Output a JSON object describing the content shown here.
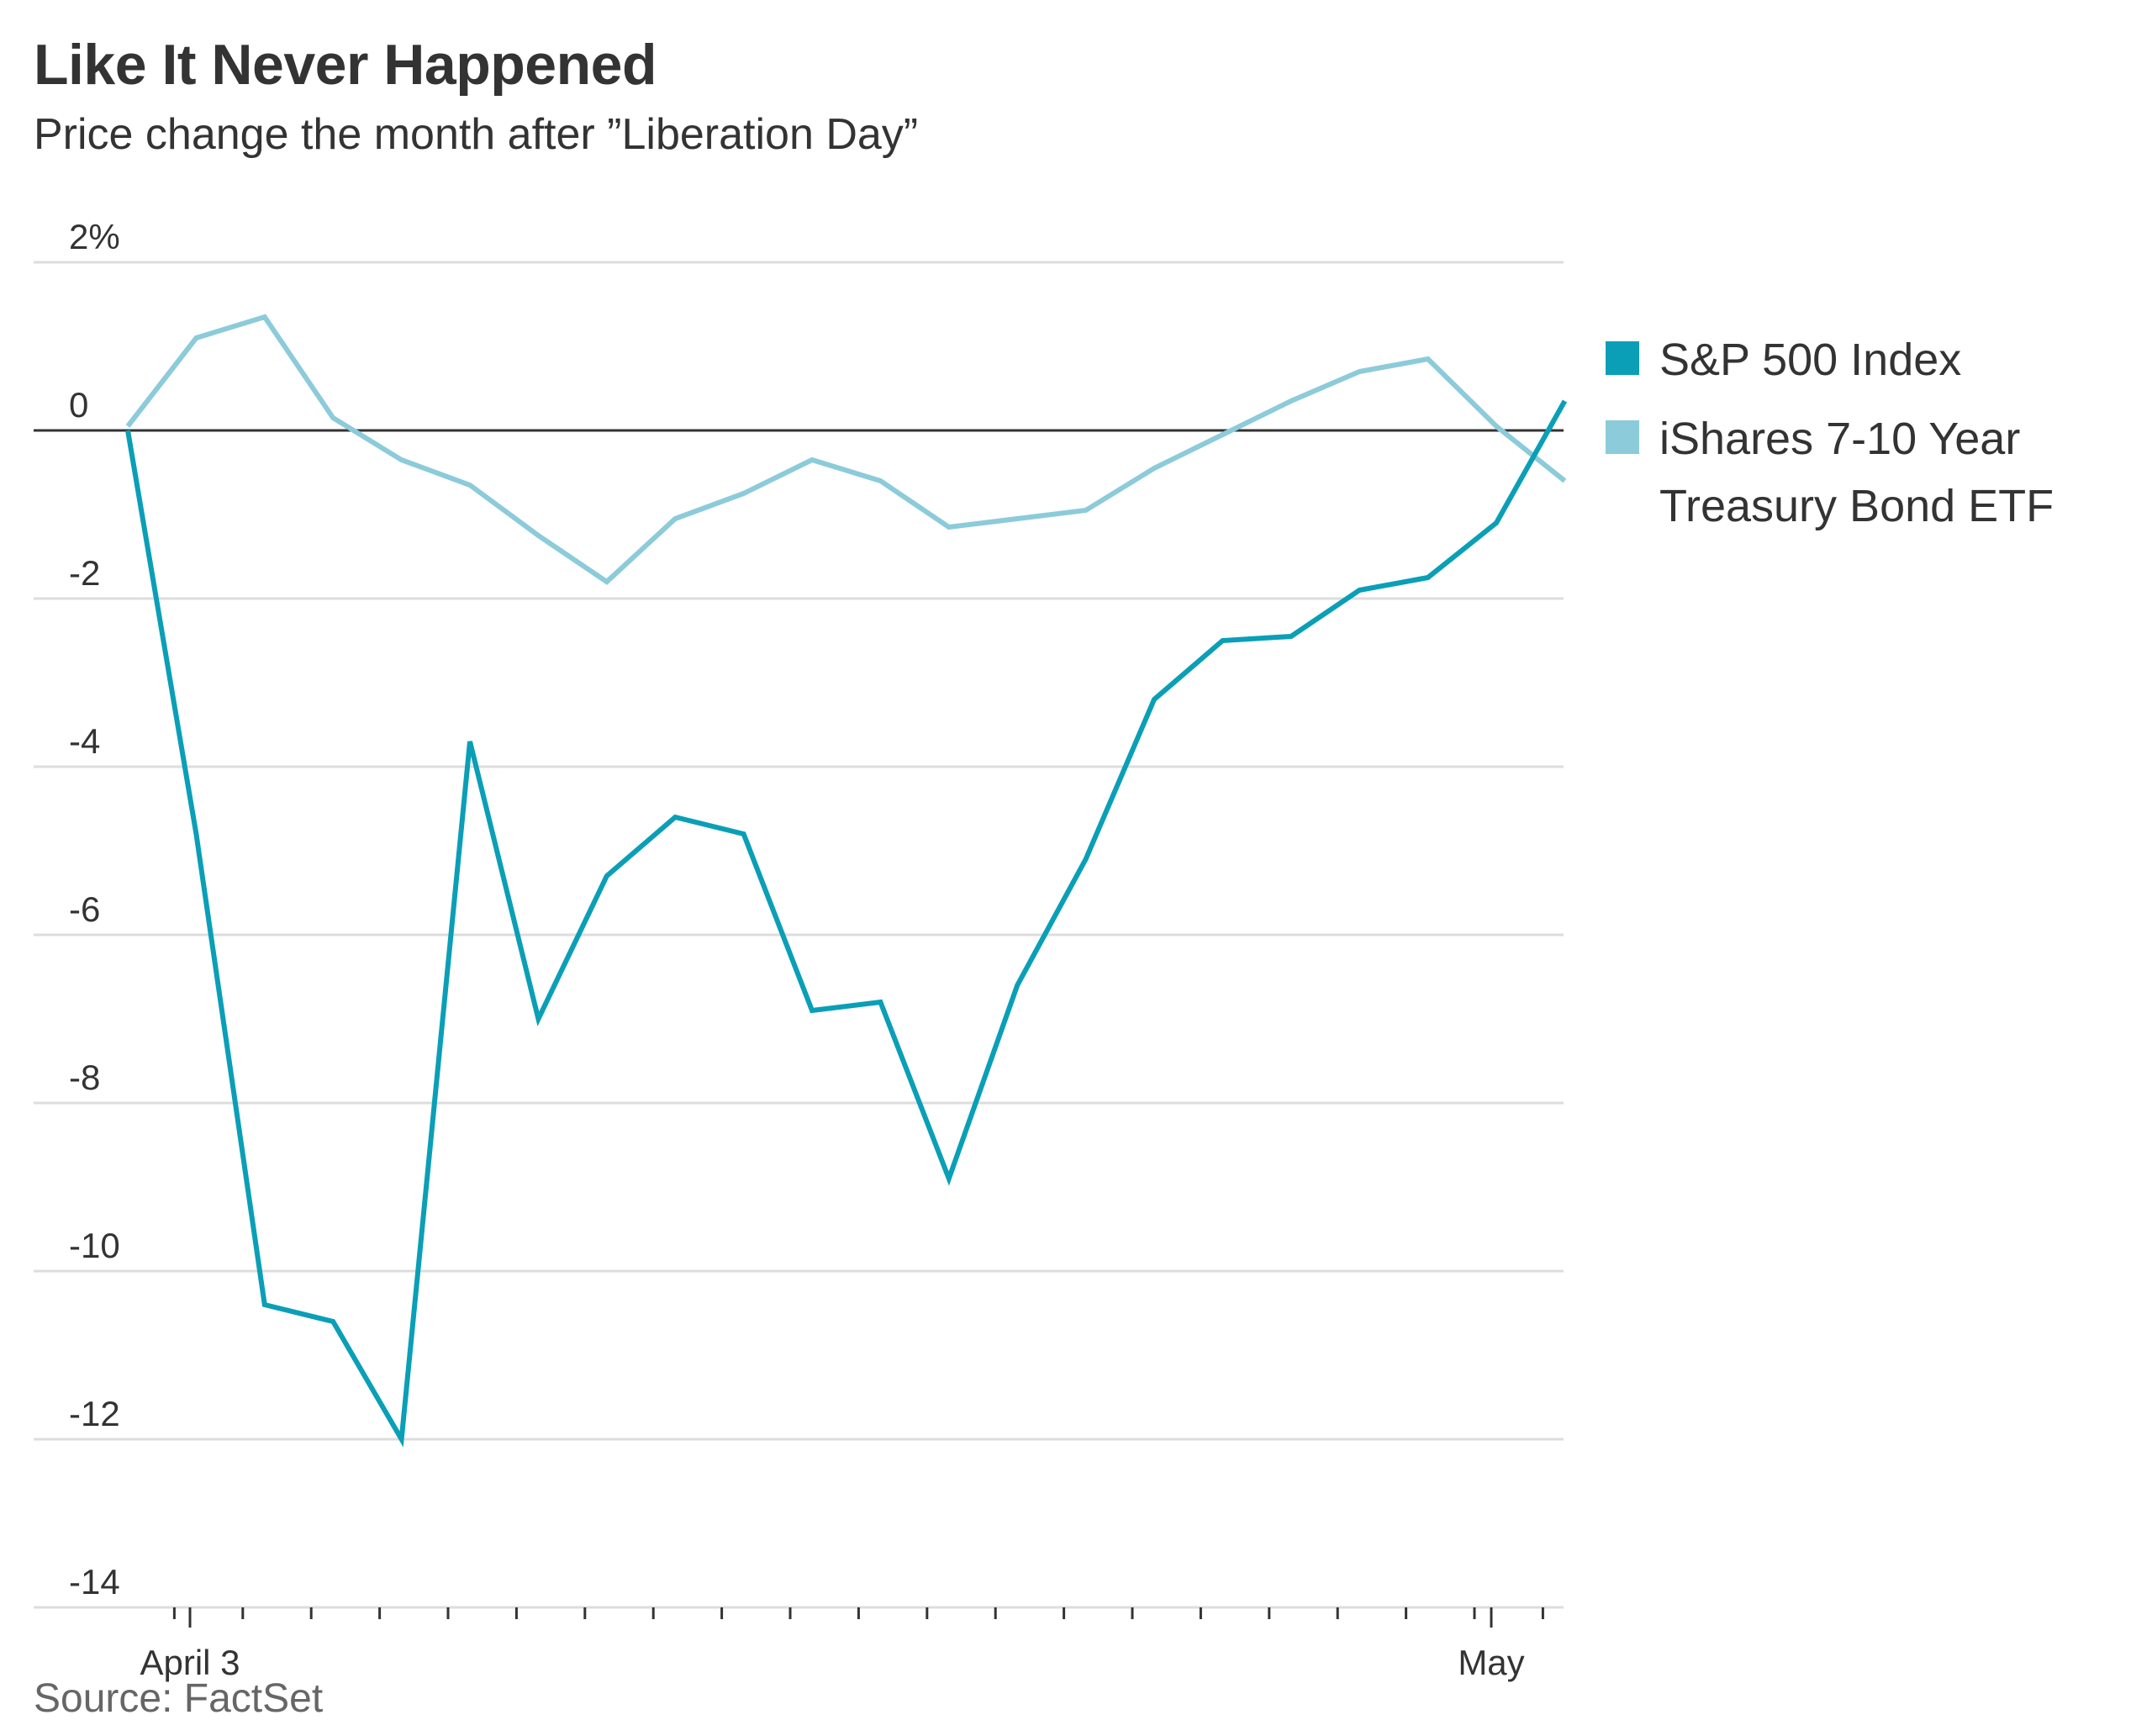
{
  "header": {
    "title": "Like It Never Happened",
    "subtitle": "Price change the month after ”Liberation Day”",
    "source": "Source: FactSet"
  },
  "colors": {
    "sp500": "#0a9fb7",
    "treasury": "#8ccbd9",
    "zero_line": "#333333",
    "grid": "#dddddd",
    "text": "#333333"
  },
  "legend": {
    "items": [
      {
        "label": "S&P 500 Index",
        "color": "#0a9fb7"
      },
      {
        "label": "iShares 7-10 Year Treasury Bond ETF",
        "color": "#8ccbd9"
      }
    ]
  },
  "chart_data": {
    "type": "line",
    "title": "Like It Never Happened",
    "subtitle": "Price change the month after ”Liberation Day”",
    "xlabel": "",
    "ylabel": "",
    "ylim": [
      -14,
      2
    ],
    "yticks": [
      2,
      0,
      -2,
      -4,
      -6,
      -8,
      -10,
      -12,
      -14
    ],
    "ytick_labels": [
      "2%",
      "0",
      "-2",
      "-4",
      "-6",
      "-8",
      "-10",
      "-12",
      "-14"
    ],
    "x_tick_labels": [
      {
        "label": "April 3",
        "index": 1
      },
      {
        "label": "May",
        "index": 20
      }
    ],
    "x_points": 22,
    "legend_position": "right",
    "series": [
      {
        "name": "S&P 500 Index",
        "color": "#0a9fb7",
        "values": [
          0,
          -4.8,
          -10.4,
          -10.6,
          -12.0,
          -3.7,
          -7.0,
          -5.3,
          -4.6,
          -4.8,
          -6.9,
          -6.8,
          -8.9,
          -6.6,
          -5.1,
          -3.2,
          -2.5,
          -2.45,
          -1.9,
          -1.75,
          -1.1,
          0.35
        ]
      },
      {
        "name": "iShares 7-10 Year Treasury Bond ETF",
        "color": "#8ccbd9",
        "values": [
          0.05,
          1.1,
          1.35,
          0.15,
          -0.35,
          -0.65,
          -1.25,
          -1.8,
          -1.05,
          -0.75,
          -0.35,
          -0.6,
          -1.15,
          -1.05,
          -0.95,
          -0.45,
          -0.05,
          0.35,
          0.7,
          0.85,
          0.05,
          -0.6
        ]
      }
    ]
  }
}
